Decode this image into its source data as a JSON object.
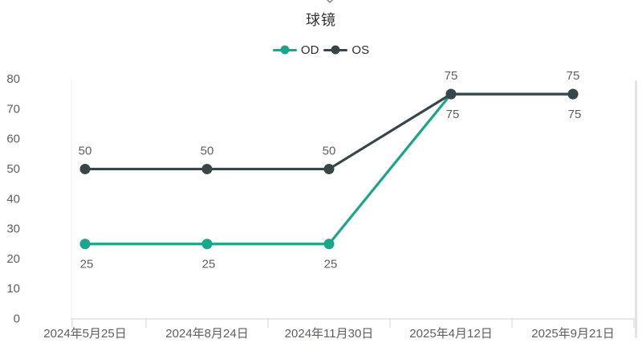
{
  "window": {
    "collapse_indicator": "chevron-down"
  },
  "chart_data": {
    "type": "line",
    "title": "球镜",
    "categories": [
      "2024年5月25日",
      "2024年8月24日",
      "2024年11月30日",
      "2025年4月12日",
      "2025年9月21日"
    ],
    "series": [
      {
        "name": "OD",
        "color": "#1BA68B",
        "values": [
          25,
          25,
          25,
          75,
          75
        ],
        "data_label_position": "below"
      },
      {
        "name": "OS",
        "color": "#374649",
        "values": [
          50,
          50,
          50,
          75,
          75
        ],
        "data_label_position": "above"
      }
    ],
    "y_axis": {
      "min": 0,
      "max": 80,
      "step": 10,
      "tick_labels": [
        "0",
        "10",
        "20",
        "30",
        "40",
        "50",
        "60",
        "70",
        "80"
      ]
    },
    "xlabel": "",
    "ylabel": "",
    "legend_position": "top-center",
    "grid": false,
    "data_labels_visible": true,
    "colors": {
      "title_text": "#333333",
      "axis_text": "#605E5C",
      "data_label_text": "#605E5C",
      "legend_text": "#2E2E2E",
      "axis_line": "#DBDBDB",
      "plot_edge": "#EDEDED"
    }
  }
}
